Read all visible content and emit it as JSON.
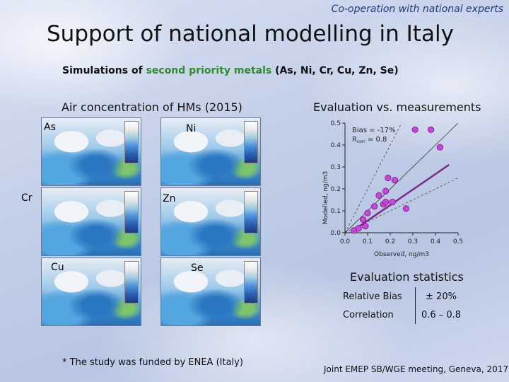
{
  "header": {
    "tagline": "Co-operation with national experts",
    "title": "Support of national modelling in Italy"
  },
  "subtitle": {
    "prefix": "Simulations of",
    "highlight": "second priority metals",
    "suffix": "(As, Ni, Cr, Cu, Zn, Se)"
  },
  "maps": {
    "heading": "Air concentration of HMs (2015)",
    "labels": [
      "As",
      "Ni",
      "Cr",
      "Zn",
      "Cu",
      "Se"
    ]
  },
  "evaluation": {
    "heading": "Evaluation vs. measurements"
  },
  "chart_data": {
    "type": "scatter",
    "xlabel": "Observed, ng/m3",
    "ylabel": "Modelled, ng/m3",
    "xlim": [
      0,
      0.5
    ],
    "ylim": [
      0,
      0.5
    ],
    "xticks": [
      "0.0",
      "0.1",
      "0.2",
      "0.3",
      "0.4",
      "0.5"
    ],
    "yticks": [
      "0.0",
      "0.1",
      "0.2",
      "0.3",
      "0.4",
      "0.5"
    ],
    "annotations": {
      "bias": "Bias = -17%",
      "corr_prefix": "R",
      "corr_sub": "corr",
      "corr_value": " = 0.8"
    },
    "points": [
      {
        "x": 0.04,
        "y": 0.01
      },
      {
        "x": 0.06,
        "y": 0.02
      },
      {
        "x": 0.08,
        "y": 0.06
      },
      {
        "x": 0.09,
        "y": 0.03
      },
      {
        "x": 0.1,
        "y": 0.09
      },
      {
        "x": 0.13,
        "y": 0.12
      },
      {
        "x": 0.15,
        "y": 0.17
      },
      {
        "x": 0.17,
        "y": 0.13
      },
      {
        "x": 0.18,
        "y": 0.14
      },
      {
        "x": 0.18,
        "y": 0.19
      },
      {
        "x": 0.21,
        "y": 0.14
      },
      {
        "x": 0.22,
        "y": 0.24
      },
      {
        "x": 0.19,
        "y": 0.25
      },
      {
        "x": 0.27,
        "y": 0.11
      },
      {
        "x": 0.42,
        "y": 0.39
      },
      {
        "x": 0.38,
        "y": 0.47
      },
      {
        "x": 0.31,
        "y": 0.47
      }
    ],
    "fit": {
      "x": [
        0.05,
        0.46
      ],
      "y": [
        0.02,
        0.31
      ]
    },
    "colors": {
      "points": "#cc44dd",
      "fit": "#7b2a8a"
    }
  },
  "stats": {
    "heading": "Evaluation statistics",
    "rows": [
      {
        "label": "Relative Bias",
        "value": "± 20%"
      },
      {
        "label": "Correlation",
        "value": "0.6 – 0.8"
      }
    ]
  },
  "footer": {
    "note": "* The study was funded by ENEA (Italy)",
    "meeting": "Joint EMEP SB/WGE meeting, Geneva, 2017"
  }
}
